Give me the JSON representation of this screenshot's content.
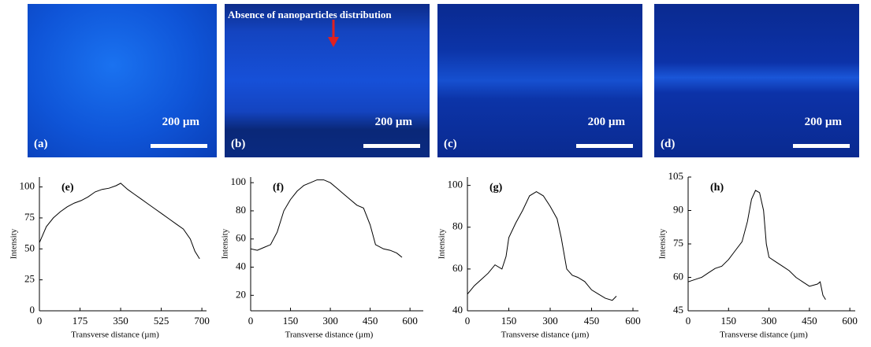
{
  "panels": [
    {
      "label": "(a)",
      "scale_bar": "200 µm"
    },
    {
      "label": "(b)",
      "scale_bar": "200 µm"
    },
    {
      "label": "(c)",
      "scale_bar": "200 µm"
    },
    {
      "label": "(d)",
      "scale_bar": "200 µm"
    }
  ],
  "annotation": "Absence of nanoparticles distribution",
  "chart_data": [
    {
      "type": "line",
      "annotation": "(e)",
      "x_label": "Transverse distance (µm)",
      "y_label": "Intensity",
      "color": "#000000",
      "x": [
        0,
        30,
        60,
        90,
        120,
        150,
        180,
        210,
        240,
        270,
        300,
        330,
        350,
        380,
        410,
        440,
        470,
        500,
        530,
        560,
        590,
        620,
        650,
        670,
        690
      ],
      "values": [
        55,
        68,
        75,
        80,
        84,
        87,
        89,
        92,
        96,
        98,
        99,
        101,
        103,
        98,
        94,
        90,
        86,
        82,
        78,
        74,
        70,
        66,
        58,
        48,
        42
      ],
      "xlim": [
        0,
        720
      ],
      "xticks": [
        0,
        175,
        350,
        525,
        700
      ],
      "ylim": [
        0,
        108
      ],
      "yticks": [
        0,
        25,
        50,
        75,
        100
      ]
    },
    {
      "type": "line",
      "annotation": "(f)",
      "x_label": "Transverse distance (µm)",
      "y_label": "Intensity",
      "color": "#000000",
      "x": [
        0,
        25,
        50,
        75,
        100,
        125,
        150,
        175,
        200,
        225,
        250,
        275,
        300,
        325,
        350,
        375,
        400,
        425,
        450,
        470,
        500,
        525,
        550,
        570
      ],
      "values": [
        53,
        52,
        54,
        56,
        65,
        80,
        88,
        94,
        98,
        100,
        102,
        102,
        100,
        96,
        92,
        88,
        84,
        82,
        70,
        56,
        53,
        52,
        50,
        47
      ],
      "xlim": [
        0,
        650
      ],
      "xticks": [
        0,
        150,
        300,
        450,
        600
      ],
      "ylim": [
        9,
        104
      ],
      "yticks": [
        20,
        40,
        60,
        80,
        100
      ]
    },
    {
      "type": "line",
      "annotation": "(g)",
      "x_label": "Transverse distance (µm)",
      "y_label": "Intensity",
      "color": "#000000",
      "x": [
        0,
        25,
        50,
        75,
        100,
        125,
        140,
        150,
        175,
        200,
        225,
        250,
        275,
        300,
        325,
        340,
        360,
        380,
        400,
        425,
        450,
        475,
        500,
        525,
        540
      ],
      "values": [
        48,
        52,
        55,
        58,
        62,
        60,
        66,
        75,
        82,
        88,
        95,
        97,
        95,
        90,
        84,
        75,
        60,
        57,
        56,
        54,
        50,
        48,
        46,
        45,
        47
      ],
      "xlim": [
        0,
        620
      ],
      "xticks": [
        0,
        150,
        300,
        450,
        600
      ],
      "ylim": [
        40,
        104
      ],
      "yticks": [
        40,
        60,
        80,
        100
      ]
    },
    {
      "type": "line",
      "annotation": "(h)",
      "x_label": "Transverse distance (µm)",
      "y_label": "Intensity",
      "color": "#000000",
      "x": [
        0,
        25,
        50,
        75,
        100,
        125,
        150,
        175,
        200,
        220,
        235,
        250,
        265,
        280,
        290,
        300,
        325,
        350,
        375,
        400,
        425,
        450,
        480,
        490,
        500,
        510
      ],
      "values": [
        58,
        59,
        60,
        62,
        64,
        65,
        68,
        72,
        76,
        85,
        95,
        99,
        98,
        90,
        75,
        69,
        67,
        65,
        63,
        60,
        58,
        56,
        57,
        58,
        52,
        50
      ],
      "xlim": [
        0,
        620
      ],
      "xticks": [
        0,
        150,
        300,
        450,
        600
      ],
      "ylim": [
        45,
        105
      ],
      "yticks": [
        45,
        60,
        75,
        90,
        105
      ]
    }
  ]
}
